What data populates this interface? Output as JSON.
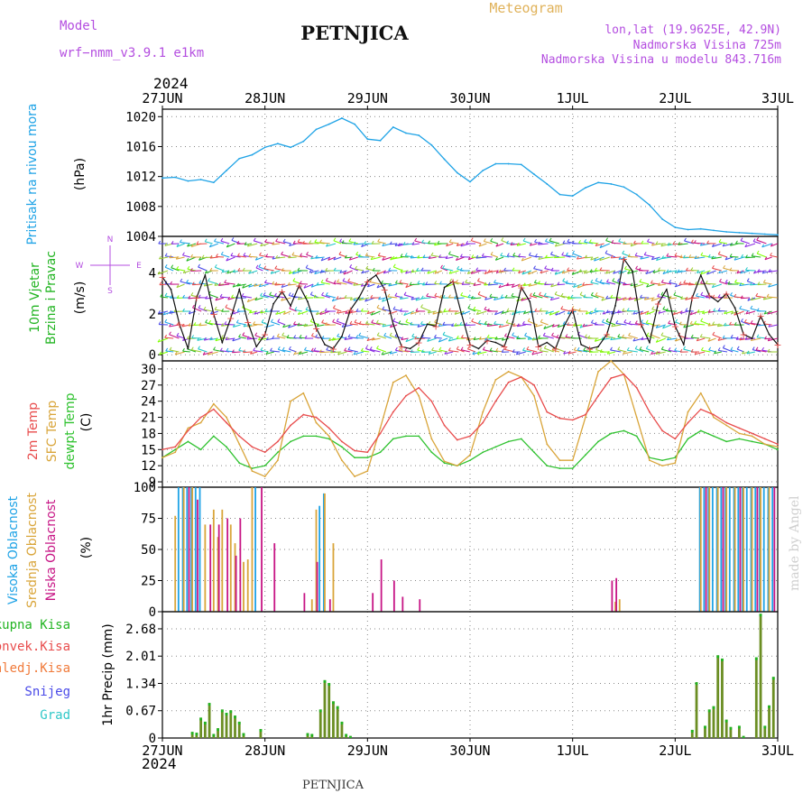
{
  "header": {
    "model_label": "Model",
    "model_name": "wrf−nmm_v3.9.1  e1km",
    "station": "PETNJICA",
    "meteogram": "Meteogram",
    "lonlat": "lon,lat (19.9625E, 42.9N)",
    "altitude": "Nadmorska Visina 725m",
    "model_altitude": "Nadmorska Visina u modelu 843.716m",
    "year": "2024",
    "footer_station": "PETNJICA",
    "watermark": "made by Angel"
  },
  "colors": {
    "pressure": "#1fa3e6",
    "wind_label": "#22b422",
    "temp": "#e84c4c",
    "sfc": "#d9a53a",
    "dewpt": "#2fc22f",
    "high_cloud": "#1fa3e6",
    "mid_cloud": "#d9a53a",
    "low_cloud": "#c71585",
    "total_precip": "#22b422",
    "conv_precip": "#e84c4c",
    "frozen": "#f07a3a",
    "snow": "#4a4ae8",
    "hail": "#30c8c8",
    "precip_bar": "#6b8e23",
    "magenta_text": "#b44ee0"
  },
  "chart_data": [
    {
      "type": "line",
      "panel": "pressure",
      "ylabel_left": "Pritisak na nivou mora",
      "unit": "(hPa)",
      "y_ticks": [
        "1020",
        "1016",
        "1012",
        "1008",
        "1004"
      ],
      "ylim": [
        1004,
        1021
      ],
      "x_ticks": [
        "27JUN",
        "28JUN",
        "29JUN",
        "30JUN",
        "1JUL",
        "2JUL",
        "3JUL"
      ],
      "xlim": [
        0,
        144
      ],
      "series": [
        {
          "name": "Pritisak na nivou mora",
          "x": [
            0,
            3,
            6,
            9,
            12,
            15,
            18,
            21,
            24,
            27,
            30,
            33,
            36,
            39,
            42,
            45,
            48,
            51,
            54,
            57,
            60,
            63,
            66,
            69,
            72,
            75,
            78,
            81,
            84,
            87,
            90,
            93,
            96,
            99,
            102,
            105,
            108,
            111,
            114,
            117,
            120,
            123,
            126,
            129,
            132,
            135,
            138,
            141,
            144
          ],
          "values": [
            1011.8,
            1011.9,
            1011.4,
            1011.6,
            1011.2,
            1012.8,
            1014.4,
            1014.9,
            1015.9,
            1016.4,
            1015.9,
            1016.7,
            1018.3,
            1019.0,
            1019.8,
            1019.0,
            1017.0,
            1016.8,
            1018.6,
            1017.8,
            1017.5,
            1016.2,
            1014.3,
            1012.5,
            1011.3,
            1012.8,
            1013.7,
            1013.7,
            1013.6,
            1012.3,
            1011.0,
            1009.6,
            1009.4,
            1010.5,
            1011.2,
            1011.0,
            1010.6,
            1009.6,
            1008.2,
            1006.3,
            1005.2,
            1004.9,
            1005.0,
            1004.8,
            1004.6,
            1004.5,
            1004.4,
            1004.3,
            1004.2
          ]
        }
      ]
    },
    {
      "type": "line",
      "panel": "wind",
      "ylabel_left": [
        "10m Vjetar",
        "Brzina i Pravac"
      ],
      "unit": "(m/s)",
      "compass": [
        "N",
        "W",
        "E",
        "S"
      ],
      "y_ticks": [
        "0",
        "2",
        "4"
      ],
      "ylim": [
        -0.3,
        5.8
      ],
      "series": [
        {
          "name": "Brzina",
          "x": [
            0,
            2,
            4,
            6,
            8,
            10,
            12,
            14,
            16,
            18,
            20,
            22,
            24,
            26,
            28,
            30,
            32,
            34,
            36,
            38,
            40,
            42,
            44,
            46,
            48,
            50,
            52,
            54,
            56,
            58,
            60,
            62,
            64,
            66,
            68,
            70,
            72,
            74,
            76,
            78,
            80,
            82,
            84,
            86,
            88,
            90,
            92,
            94,
            96,
            98,
            100,
            102,
            104,
            106,
            108,
            110,
            112,
            114,
            116,
            118,
            120,
            122,
            124,
            126,
            128,
            130,
            132,
            134,
            136,
            138,
            140,
            142,
            144
          ],
          "values": [
            3.8,
            3.2,
            1.5,
            0.3,
            2.8,
            3.9,
            2.0,
            0.6,
            1.8,
            3.2,
            1.6,
            0.4,
            1.0,
            2.5,
            3.1,
            2.4,
            3.4,
            2.6,
            1.3,
            0.5,
            0.3,
            0.9,
            2.2,
            2.8,
            3.6,
            3.9,
            3.2,
            1.5,
            0.4,
            0.3,
            0.6,
            1.5,
            1.4,
            3.3,
            3.6,
            2.0,
            0.5,
            0.3,
            0.7,
            0.6,
            0.4,
            1.6,
            3.3,
            2.6,
            0.4,
            0.6,
            0.3,
            1.4,
            2.2,
            0.5,
            0.3,
            0.4,
            1.0,
            2.4,
            4.7,
            4.1,
            1.5,
            0.6,
            2.5,
            3.2,
            1.4,
            0.5,
            2.8,
            3.9,
            2.9,
            2.6,
            3.0,
            2.3,
            1.0,
            0.8,
            1.9,
            1.0,
            0.5
          ]
        }
      ]
    },
    {
      "type": "line",
      "panel": "temperature",
      "ylabel_left": [
        "2m Temp",
        "SFC Temp",
        "dewpt Temp"
      ],
      "unit": "(C)",
      "y_ticks": [
        "30",
        "27",
        "24",
        "21",
        "18",
        "15",
        "12",
        "9"
      ],
      "ylim": [
        8,
        31.5
      ],
      "series": [
        {
          "name": "2m Temp",
          "x": [
            0,
            3,
            6,
            9,
            12,
            15,
            18,
            21,
            24,
            27,
            30,
            33,
            36,
            39,
            42,
            45,
            48,
            51,
            54,
            57,
            60,
            63,
            66,
            69,
            72,
            75,
            78,
            81,
            84,
            87,
            90,
            93,
            96,
            99,
            102,
            105,
            108,
            111,
            114,
            117,
            120,
            123,
            126,
            129,
            132,
            135,
            138,
            141,
            144
          ],
          "values": [
            15.0,
            15.5,
            18.5,
            21.0,
            22.5,
            20.0,
            17.5,
            15.5,
            14.5,
            16.5,
            19.5,
            21.5,
            21.0,
            19.0,
            16.5,
            14.8,
            14.5,
            18.0,
            22.0,
            25.0,
            26.5,
            24.0,
            19.5,
            16.8,
            17.5,
            20.0,
            24.0,
            27.5,
            28.5,
            27.0,
            22.0,
            20.8,
            20.5,
            21.5,
            25.0,
            28.3,
            29.0,
            26.5,
            22.0,
            18.5,
            17.0,
            20.0,
            22.5,
            21.5,
            20.0,
            19.0,
            18.0,
            17.0,
            16.0
          ]
        },
        {
          "name": "SFC Temp",
          "x": [
            0,
            3,
            6,
            9,
            12,
            15,
            18,
            21,
            24,
            27,
            30,
            33,
            36,
            39,
            42,
            45,
            48,
            51,
            54,
            57,
            60,
            63,
            66,
            69,
            72,
            75,
            78,
            81,
            84,
            87,
            90,
            93,
            96,
            99,
            102,
            105,
            108,
            111,
            114,
            117,
            120,
            123,
            126,
            129,
            132,
            135,
            138,
            141,
            144
          ],
          "values": [
            13.5,
            14.5,
            19.0,
            20.0,
            23.5,
            21.0,
            16.0,
            11.0,
            10.0,
            13.0,
            24.0,
            25.5,
            20.0,
            17.5,
            13.0,
            10.0,
            11.0,
            19.0,
            27.5,
            28.8,
            25.0,
            17.0,
            12.8,
            12.0,
            14.0,
            22.0,
            28.0,
            29.5,
            28.5,
            25.0,
            16.0,
            13.0,
            13.0,
            21.0,
            29.5,
            31.5,
            29.0,
            21.0,
            13.0,
            12.0,
            12.5,
            22.0,
            25.5,
            21.0,
            19.5,
            18.0,
            17.5,
            16.0,
            15.5
          ]
        },
        {
          "name": "dewpt Temp",
          "x": [
            0,
            3,
            6,
            9,
            12,
            15,
            18,
            21,
            24,
            27,
            30,
            33,
            36,
            39,
            42,
            45,
            48,
            51,
            54,
            57,
            60,
            63,
            66,
            69,
            72,
            75,
            78,
            81,
            84,
            87,
            90,
            93,
            96,
            99,
            102,
            105,
            108,
            111,
            114,
            117,
            120,
            123,
            126,
            129,
            132,
            135,
            138,
            141,
            144
          ],
          "values": [
            13.5,
            15.0,
            16.5,
            15.0,
            17.5,
            15.5,
            12.5,
            11.5,
            12.0,
            14.5,
            16.5,
            17.5,
            17.5,
            17.0,
            15.5,
            13.5,
            13.5,
            14.5,
            17.0,
            17.5,
            17.5,
            14.5,
            12.5,
            12.0,
            13.0,
            14.5,
            15.5,
            16.5,
            17.0,
            14.5,
            12.0,
            11.5,
            11.5,
            14.0,
            16.5,
            18.0,
            18.5,
            17.5,
            13.5,
            13.0,
            13.5,
            17.0,
            18.5,
            17.5,
            16.5,
            17.0,
            16.5,
            16.0,
            15.0
          ]
        }
      ]
    },
    {
      "type": "bar",
      "panel": "cloud",
      "ylabel_left": [
        "Visoka Oblacnost",
        "Srednja Oblacnost",
        "Niska Oblacnost"
      ],
      "unit": "(%)",
      "y_ticks": [
        "100",
        "75",
        "50",
        "25",
        "0"
      ],
      "ylim": [
        0,
        100
      ],
      "series": [
        {
          "name": "Visoka Oblacnost",
          "x": [
            4,
            5,
            6,
            7,
            8,
            9,
            22,
            37,
            38,
            126,
            127,
            128,
            129,
            130,
            131,
            132,
            133,
            134,
            135,
            136,
            137,
            138,
            139,
            140,
            141,
            142,
            143
          ],
          "values": [
            100,
            100,
            100,
            100,
            100,
            100,
            100,
            85,
            95,
            100,
            100,
            100,
            100,
            100,
            100,
            100,
            100,
            100,
            100,
            100,
            100,
            100,
            100,
            100,
            100,
            100,
            100
          ]
        },
        {
          "name": "Srednja Oblacnost",
          "x": [
            3,
            5,
            7,
            10,
            12,
            13,
            14,
            16,
            17,
            19,
            20,
            21,
            35,
            36,
            38,
            40,
            106,
            107,
            126,
            128,
            130,
            132,
            134,
            136,
            138,
            140,
            142
          ],
          "values": [
            77,
            100,
            100,
            70,
            82,
            60,
            82,
            70,
            55,
            40,
            42,
            100,
            10,
            82,
            95,
            55,
            8,
            10,
            100,
            100,
            100,
            100,
            100,
            100,
            100,
            100,
            100
          ]
        },
        {
          "name": "Niska Oblacnost",
          "x": [
            6,
            8,
            11,
            13,
            15,
            17,
            18,
            23,
            26,
            33,
            36,
            39,
            49,
            51,
            54,
            56,
            60,
            105,
            106,
            127,
            131,
            135,
            139,
            143
          ],
          "values": [
            100,
            90,
            70,
            70,
            75,
            45,
            75,
            100,
            55,
            15,
            40,
            10,
            15,
            42,
            25,
            12,
            10,
            25,
            27,
            100,
            100,
            100,
            100,
            100
          ]
        }
      ]
    },
    {
      "type": "bar",
      "panel": "precip",
      "ylabel_left": [
        "Ukupna Kisa",
        "Konvek.Kisa",
        "Zaledj.Kisa",
        "Snijeg",
        "Grad"
      ],
      "unit": "1hr Precip (mm)",
      "y_ticks": [
        "2.68",
        "2.01",
        "1.34",
        "0.67",
        "0"
      ],
      "ylim": [
        0,
        3.1
      ],
      "series": [
        {
          "name": "Ukupna Kisa",
          "x": [
            7,
            8,
            9,
            10,
            11,
            12,
            13,
            14,
            15,
            16,
            17,
            18,
            19,
            23,
            34,
            35,
            37,
            38,
            39,
            40,
            41,
            42,
            43,
            44,
            124,
            125,
            127,
            128,
            129,
            130,
            131,
            132,
            133,
            135,
            136,
            139,
            140,
            141,
            142,
            143
          ],
          "values": [
            0.15,
            0.13,
            0.5,
            0.4,
            0.86,
            0.1,
            0.24,
            0.7,
            0.62,
            0.68,
            0.55,
            0.4,
            0.12,
            0.22,
            0.12,
            0.1,
            0.7,
            1.42,
            1.35,
            0.9,
            0.78,
            0.4,
            0.1,
            0.05,
            0.2,
            1.37,
            0.3,
            0.7,
            0.78,
            2.03,
            1.95,
            0.45,
            0.27,
            0.3,
            0.05,
            1.98,
            3.05,
            0.3,
            0.8,
            1.5
          ]
        }
      ]
    }
  ],
  "x_axis": {
    "year_top": "2024",
    "year_bottom": "2024",
    "ticks": [
      "27JUN",
      "28JUN",
      "29JUN",
      "30JUN",
      "1JUL",
      "2JUL",
      "3JUL"
    ]
  }
}
